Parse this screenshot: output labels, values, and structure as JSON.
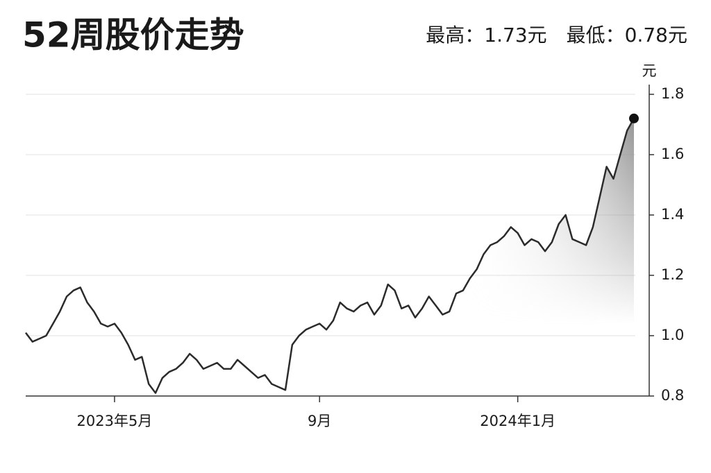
{
  "chart_data": {
    "type": "line",
    "title": "52周股价走势",
    "subtitle": "最高：1.73元　最低：0.78元",
    "y_unit": "元",
    "color": "#2b2b2b",
    "categories": [
      null,
      null,
      null,
      null,
      null,
      null,
      null,
      null,
      null,
      null,
      null,
      null,
      null,
      "2023年5月",
      null,
      null,
      null,
      null,
      null,
      null,
      null,
      null,
      null,
      null,
      null,
      null,
      null,
      null,
      null,
      null,
      null,
      null,
      null,
      null,
      null,
      null,
      null,
      null,
      null,
      null,
      null,
      null,
      null,
      "9月",
      null,
      null,
      null,
      null,
      null,
      null,
      null,
      null,
      null,
      null,
      null,
      null,
      null,
      null,
      null,
      null,
      null,
      null,
      null,
      null,
      null,
      null,
      null,
      null,
      null,
      null,
      null,
      null,
      "2024年1月",
      null,
      null,
      null,
      null,
      null,
      null,
      null,
      null,
      null,
      null,
      null,
      null,
      null,
      null,
      null,
      null,
      null
    ],
    "values": [
      1.01,
      0.98,
      0.99,
      1.0,
      1.04,
      1.08,
      1.13,
      1.15,
      1.16,
      1.11,
      1.08,
      1.04,
      1.03,
      1.04,
      1.01,
      0.97,
      0.92,
      0.93,
      0.84,
      0.81,
      0.86,
      0.88,
      0.89,
      0.91,
      0.94,
      0.92,
      0.89,
      0.9,
      0.91,
      0.89,
      0.89,
      0.92,
      0.9,
      0.88,
      0.86,
      0.87,
      0.84,
      0.83,
      0.82,
      0.97,
      1.0,
      1.02,
      1.03,
      1.04,
      1.02,
      1.05,
      1.11,
      1.09,
      1.08,
      1.1,
      1.11,
      1.07,
      1.1,
      1.17,
      1.15,
      1.09,
      1.1,
      1.06,
      1.09,
      1.13,
      1.1,
      1.07,
      1.08,
      1.14,
      1.15,
      1.19,
      1.22,
      1.27,
      1.3,
      1.31,
      1.33,
      1.36,
      1.34,
      1.3,
      1.32,
      1.31,
      1.28,
      1.31,
      1.37,
      1.4,
      1.32,
      1.31,
      1.3,
      1.36,
      1.46,
      1.56,
      1.52,
      1.6,
      1.68,
      1.72
    ],
    "ylim": [
      0.8,
      1.8
    ],
    "yticks": [
      0.8,
      {
        "value": 1,
        "label": "1.0"
      },
      1.2,
      1.4,
      1.6,
      1.8
    ],
    "grid": true
  }
}
